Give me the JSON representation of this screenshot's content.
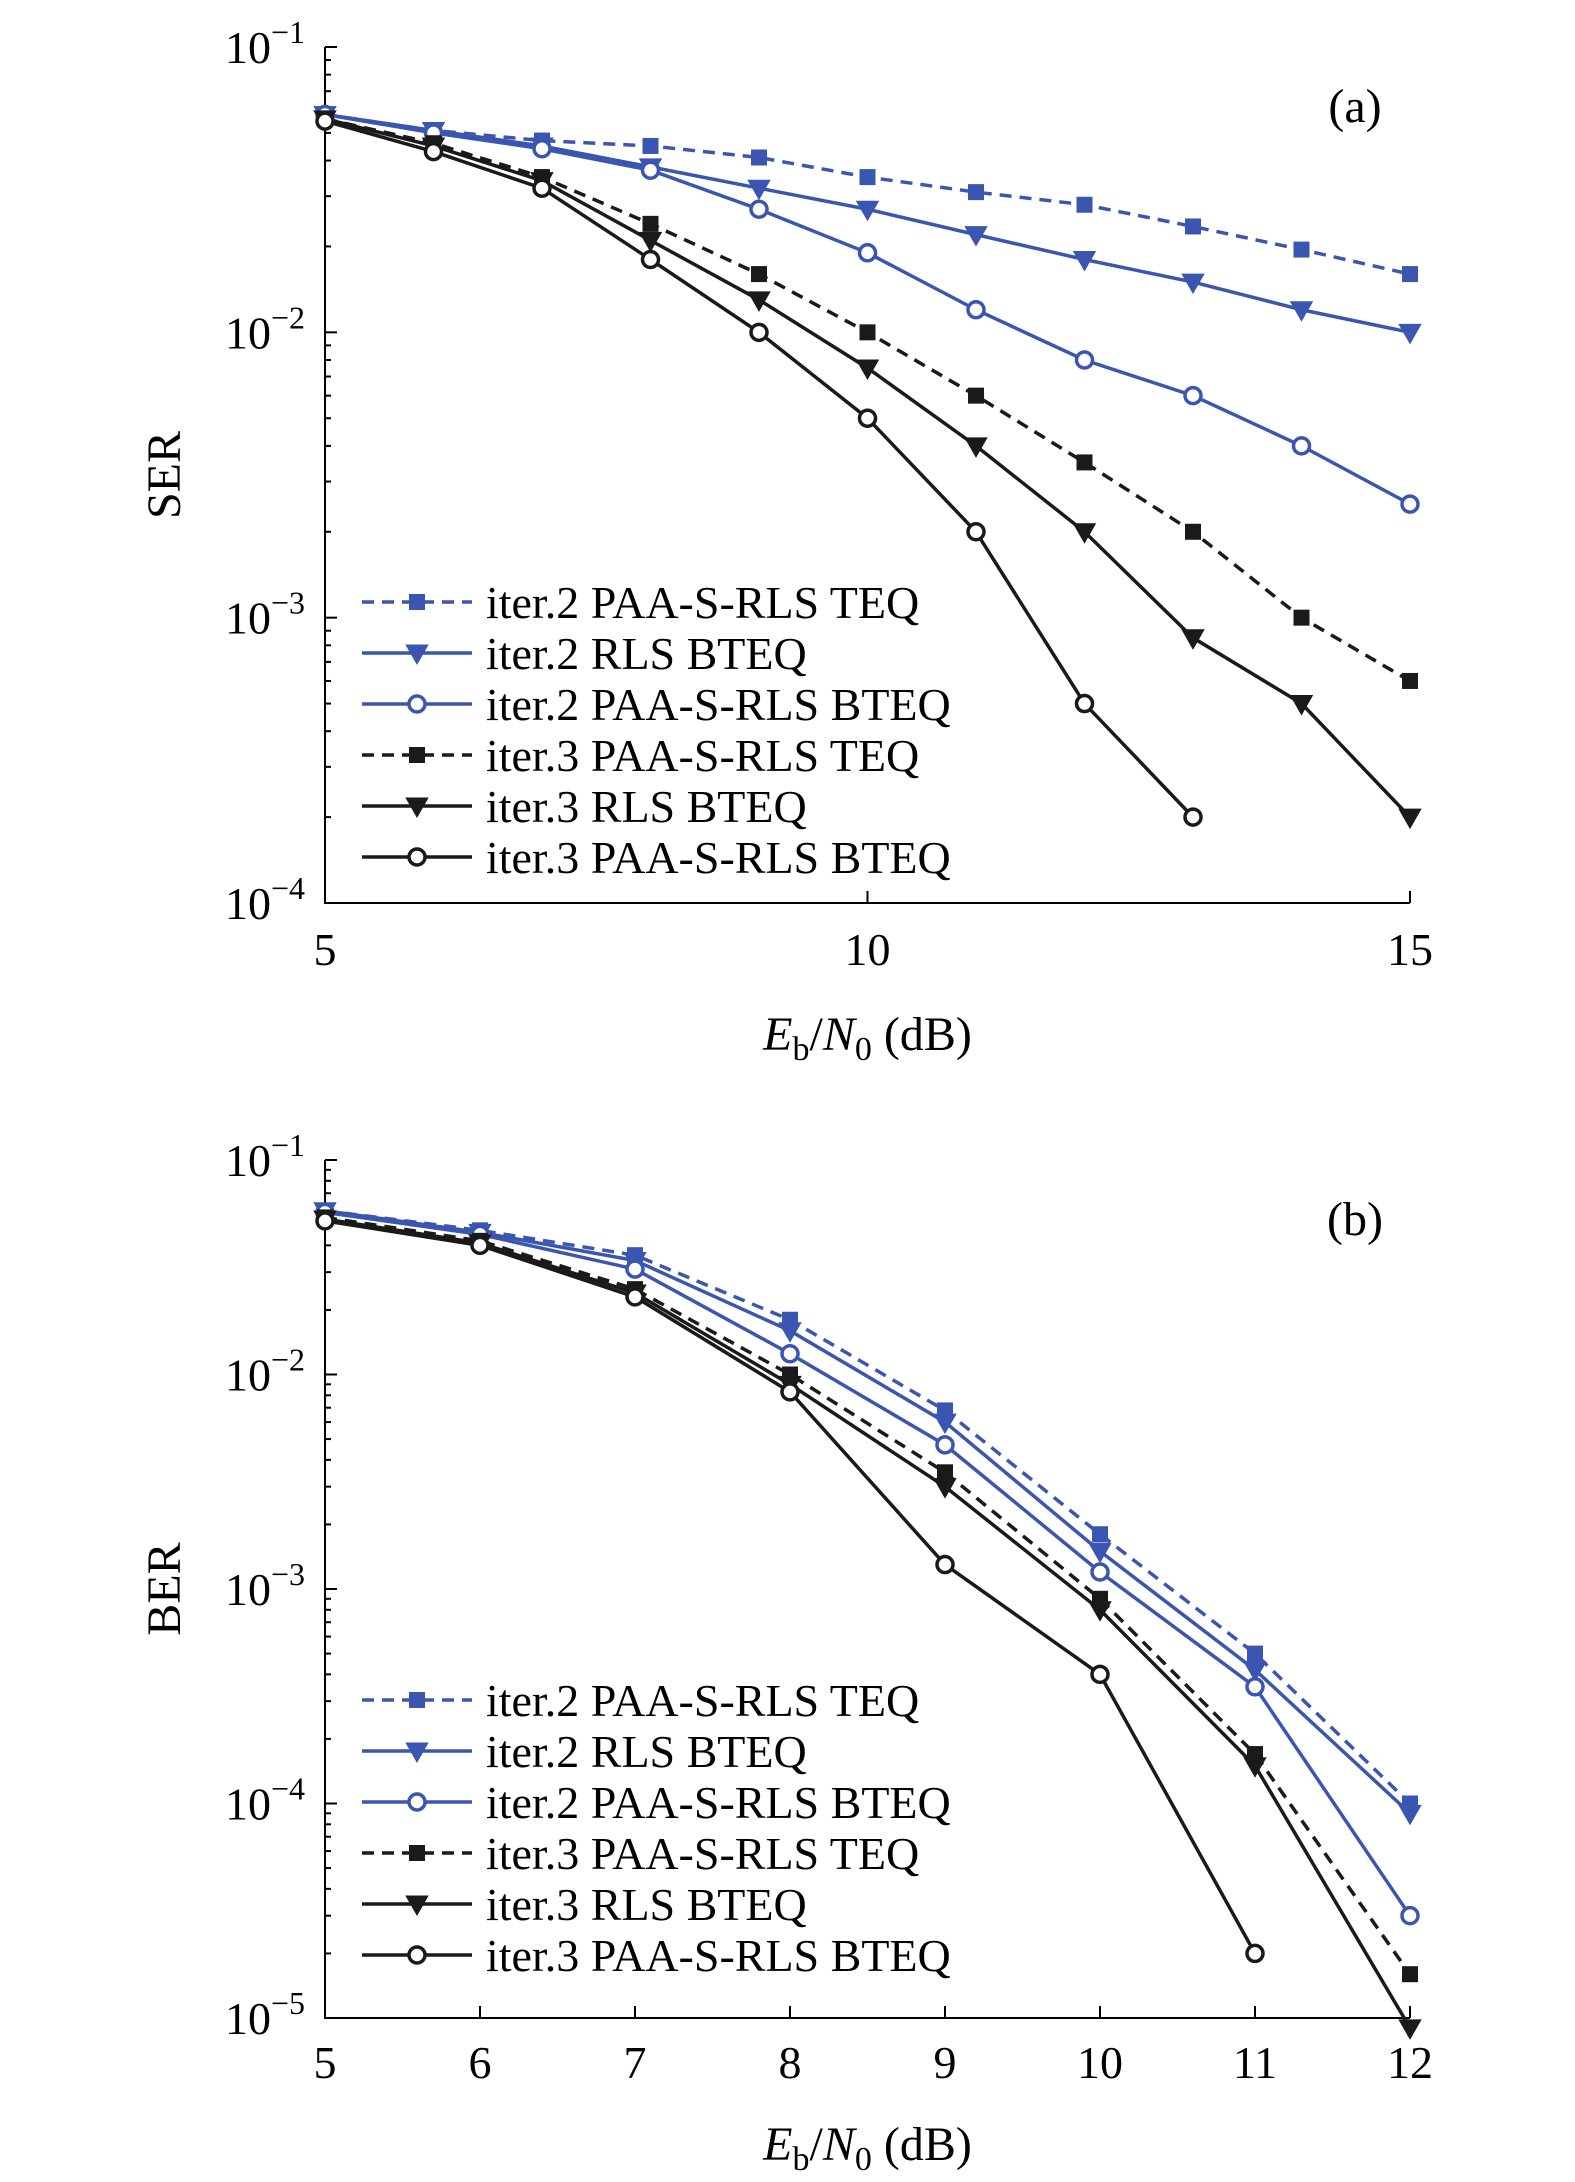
{
  "colors": {
    "blue": "#3a56b0",
    "black": "#1a1a1a"
  },
  "chart_data": [
    {
      "type": "line",
      "panel_tag": "(a)",
      "ylabel": "SER",
      "xlabel": {
        "main": "E",
        "sub1": "b",
        "slash": "/N",
        "sub2": "0",
        "unit": " (dB)"
      },
      "y_scale": "log",
      "xlim": [
        5,
        15
      ],
      "ylim": [
        0.0001,
        0.1
      ],
      "x_ticks": [
        5,
        10,
        15
      ],
      "x_tick_labels": [
        "5",
        "10",
        "15"
      ],
      "y_ticks": [
        {
          "value": 0.1,
          "base": "10",
          "exp": "−1"
        },
        {
          "value": 0.01,
          "base": "10",
          "exp": "−2"
        },
        {
          "value": 0.001,
          "base": "10",
          "exp": "−3"
        },
        {
          "value": 0.0001,
          "base": "10",
          "exp": "−4"
        }
      ],
      "grid": false,
      "legend_position": "bottom-left",
      "series": [
        {
          "name": "iter.2 PAA-S-RLS TEQ",
          "color": "blue",
          "dash": true,
          "marker": "square",
          "x": [
            5,
            6,
            7,
            8,
            9,
            10,
            11,
            12,
            13,
            14,
            15
          ],
          "y": [
            0.058,
            0.051,
            0.047,
            0.045,
            0.041,
            0.035,
            0.031,
            0.028,
            0.0235,
            0.0195,
            0.016
          ]
        },
        {
          "name": "iter.2 RLS BTEQ",
          "color": "blue",
          "dash": false,
          "marker": "triangle",
          "x": [
            5,
            6,
            7,
            8,
            9,
            10,
            11,
            12,
            13,
            14,
            15
          ],
          "y": [
            0.058,
            0.051,
            0.045,
            0.038,
            0.032,
            0.027,
            0.022,
            0.018,
            0.015,
            0.012,
            0.01
          ]
        },
        {
          "name": "iter.2 PAA-S-RLS BTEQ",
          "color": "blue",
          "dash": false,
          "marker": "circle",
          "x": [
            5,
            6,
            7,
            8,
            9,
            10,
            11,
            12,
            13,
            14,
            15
          ],
          "y": [
            0.058,
            0.05,
            0.044,
            0.037,
            0.027,
            0.019,
            0.012,
            0.008,
            0.006,
            0.004,
            0.0025
          ]
        },
        {
          "name": "iter.3 PAA-S-RLS TEQ",
          "color": "black",
          "dash": true,
          "marker": "square",
          "x": [
            5,
            6,
            7,
            8,
            9,
            10,
            11,
            12,
            13,
            14,
            15
          ],
          "y": [
            0.056,
            0.046,
            0.035,
            0.024,
            0.016,
            0.01,
            0.006,
            0.0035,
            0.002,
            0.001,
            0.0006
          ]
        },
        {
          "name": "iter.3 RLS BTEQ",
          "color": "black",
          "dash": false,
          "marker": "triangle",
          "x": [
            5,
            6,
            7,
            8,
            9,
            10,
            11,
            12,
            13,
            14,
            15
          ],
          "y": [
            0.056,
            0.045,
            0.034,
            0.021,
            0.013,
            0.0075,
            0.004,
            0.002,
            0.00085,
            0.0005,
            0.0002
          ]
        },
        {
          "name": "iter.3 PAA-S-RLS  BTEQ",
          "color": "black",
          "dash": false,
          "marker": "circle",
          "x": [
            5,
            6,
            7,
            8,
            9,
            10,
            11,
            12,
            13
          ],
          "y": [
            0.055,
            0.043,
            0.032,
            0.018,
            0.01,
            0.005,
            0.002,
            0.0005,
            0.0002
          ]
        }
      ]
    },
    {
      "type": "line",
      "panel_tag": "(b)",
      "ylabel": "BER",
      "xlabel": {
        "main": "E",
        "sub1": "b",
        "slash": "/N",
        "sub2": "0",
        "unit": " (dB)"
      },
      "y_scale": "log",
      "xlim": [
        5,
        12
      ],
      "ylim": [
        1e-05,
        0.1
      ],
      "x_ticks": [
        5,
        6,
        7,
        8,
        9,
        10,
        11,
        12
      ],
      "x_tick_labels": [
        "5",
        "6",
        "7",
        "8",
        "9",
        "10",
        "11",
        "12"
      ],
      "y_ticks": [
        {
          "value": 0.1,
          "base": "10",
          "exp": "−1"
        },
        {
          "value": 0.01,
          "base": "10",
          "exp": "−2"
        },
        {
          "value": 0.001,
          "base": "10",
          "exp": "−3"
        },
        {
          "value": 0.0001,
          "base": "10",
          "exp": "−4"
        },
        {
          "value": 1e-05,
          "base": "10",
          "exp": "−5"
        }
      ],
      "grid": false,
      "legend_position": "bottom-left",
      "series": [
        {
          "name": "iter.2 PAA-S-RLS TEQ",
          "color": "blue",
          "dash": true,
          "marker": "square",
          "x": [
            5,
            6,
            7,
            8,
            9,
            10,
            11,
            12
          ],
          "y": [
            0.058,
            0.047,
            0.036,
            0.018,
            0.0068,
            0.0018,
            0.0005,
            0.0001
          ]
        },
        {
          "name": "iter.2 RLS BTEQ",
          "color": "blue",
          "dash": false,
          "marker": "triangle",
          "x": [
            5,
            6,
            7,
            8,
            9,
            10,
            11,
            12
          ],
          "y": [
            0.058,
            0.046,
            0.034,
            0.016,
            0.006,
            0.0015,
            0.00042,
            9e-05
          ]
        },
        {
          "name": "iter.2 PAA-S-RLS BTEQ",
          "color": "blue",
          "dash": false,
          "marker": "circle",
          "x": [
            5,
            6,
            7,
            8,
            9,
            10,
            11,
            12
          ],
          "y": [
            0.057,
            0.045,
            0.031,
            0.0125,
            0.0047,
            0.0012,
            0.00035,
            3e-05
          ]
        },
        {
          "name": "iter.3 PAA-S-RLS TEQ",
          "color": "black",
          "dash": true,
          "marker": "square",
          "x": [
            5,
            6,
            7,
            8,
            9,
            10,
            11,
            12
          ],
          "y": [
            0.054,
            0.042,
            0.025,
            0.01,
            0.0035,
            0.0009,
            0.00017,
            1.6e-05
          ]
        },
        {
          "name": "iter.3 RLS BTEQ",
          "color": "black",
          "dash": false,
          "marker": "triangle",
          "x": [
            5,
            6,
            7,
            8,
            9,
            10,
            11,
            12
          ],
          "y": [
            0.053,
            0.041,
            0.024,
            0.009,
            0.003,
            0.0008,
            0.00015,
            9e-06
          ]
        },
        {
          "name": "iter.3 PAA-S-RLS BTEQ",
          "color": "black",
          "dash": false,
          "marker": "circle",
          "x": [
            5,
            6,
            7,
            8,
            9,
            10,
            11
          ],
          "y": [
            0.052,
            0.04,
            0.023,
            0.0083,
            0.0013,
            0.0004,
            2e-05
          ]
        }
      ]
    }
  ]
}
